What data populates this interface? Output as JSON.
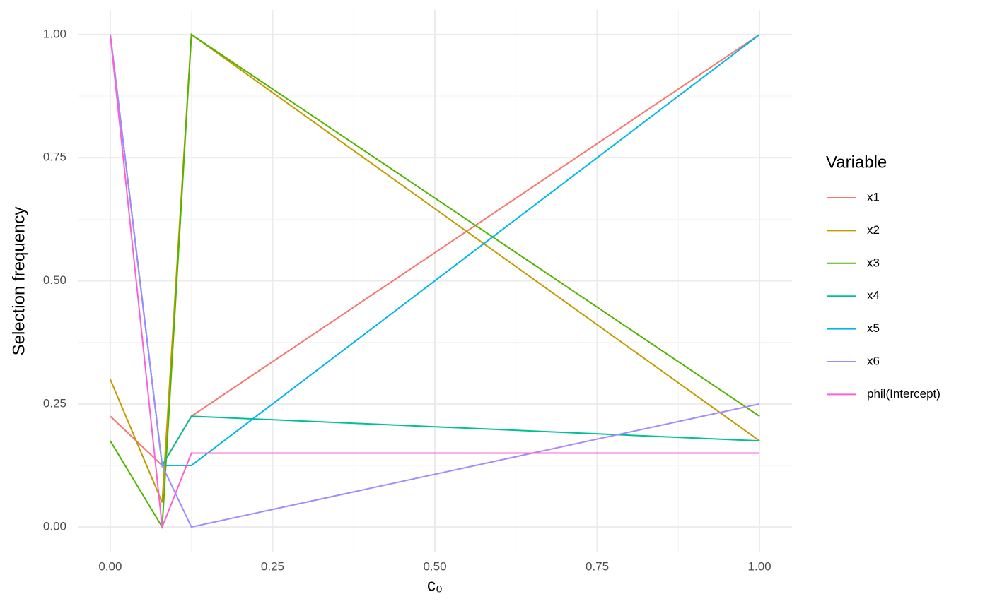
{
  "chart_data": {
    "type": "line",
    "x_label": "c₀",
    "y_label": "Selection frequency",
    "legend_title": "Variable",
    "x": [
      0,
      0.08,
      0.125,
      1
    ],
    "series": [
      {
        "name": "x1",
        "color": "#F8766D",
        "values": [
          0.225,
          0.125,
          0.225,
          1.0
        ]
      },
      {
        "name": "x2",
        "color": "#C49A00",
        "values": [
          0.3,
          0.05,
          1.0,
          0.175
        ]
      },
      {
        "name": "x3",
        "color": "#53B400",
        "values": [
          0.175,
          0,
          1.0,
          0.225
        ]
      },
      {
        "name": "x4",
        "color": "#00C094",
        "values": [
          1.0,
          0.125,
          0.225,
          0.175
        ]
      },
      {
        "name": "x5",
        "color": "#00B6EB",
        "values": [
          1.0,
          0.125,
          0.125,
          1.0
        ]
      },
      {
        "name": "x6",
        "color": "#A58AFF",
        "values": [
          1.0,
          0.125,
          0,
          0.25
        ]
      },
      {
        "name": "phil(Intercept)",
        "color": "#FB61D7",
        "values": [
          1.0,
          0,
          0.15,
          0.15
        ]
      }
    ],
    "xlim": [
      -0.05,
      1.05
    ],
    "ylim": [
      -0.05,
      1.05
    ],
    "xticks": [
      {
        "value": 0,
        "label": "0.00"
      },
      0.25,
      {
        "value": 0.5,
        "label": "0.50"
      },
      0.75,
      {
        "value": 1,
        "label": "1.00"
      }
    ],
    "yticks": [
      {
        "value": 0,
        "label": "0.00"
      },
      0.25,
      {
        "value": 0.5,
        "label": "0.50"
      },
      0.75,
      {
        "value": 1,
        "label": "1.00"
      }
    ],
    "grid": true,
    "legend": "right"
  }
}
